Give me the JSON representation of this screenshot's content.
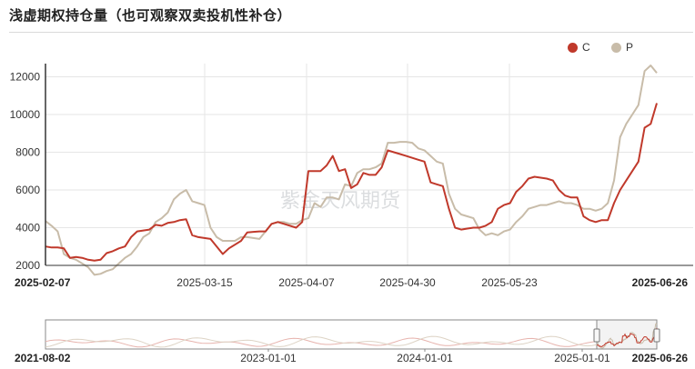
{
  "title": "浅虚期权持仓量（也可观察双卖投机性补仓）",
  "watermark": "紫金天风期货",
  "colors": {
    "C": "#c0392b",
    "P": "#c8bca9",
    "grid": "#e6e6e6",
    "axis": "#333333"
  },
  "chart_data": {
    "type": "line",
    "title": "浅虚期权持仓量（也可观察双卖投机性补仓）",
    "xlabel": "",
    "ylabel": "",
    "ylim": [
      2000,
      12600
    ],
    "yticks": [
      2000,
      4000,
      6000,
      8000,
      10000,
      12000
    ],
    "grid": true,
    "legend": "top-right",
    "x_start": "2025-02-07",
    "x_end": "2025-06-26",
    "x_ticks": [
      {
        "label": "2025-02-07",
        "bold": true
      },
      {
        "label": "2025-03-15",
        "bold": false
      },
      {
        "label": "2025-04-07",
        "bold": false
      },
      {
        "label": "2025-04-30",
        "bold": false
      },
      {
        "label": "2025-05-23",
        "bold": false
      },
      {
        "label": "2025-06-26",
        "bold": true
      }
    ],
    "series": [
      {
        "name": "C",
        "values": [
          3000,
          2950,
          2950,
          2900,
          2400,
          2450,
          2400,
          2300,
          2250,
          2300,
          2650,
          2750,
          2900,
          3000,
          3500,
          3800,
          3850,
          3900,
          4150,
          4100,
          4250,
          4300,
          4400,
          4450,
          3600,
          3500,
          3450,
          3400,
          3000,
          2600,
          2900,
          3100,
          3300,
          3750,
          3780,
          3800,
          3800,
          4200,
          4300,
          4200,
          4100,
          4000,
          4300,
          7000,
          7000,
          7000,
          7300,
          7800,
          7000,
          7100,
          6100,
          6300,
          6900,
          6800,
          6800,
          7200,
          8100,
          8000,
          7900,
          7800,
          7700,
          7600,
          7500,
          6400,
          6300,
          6200,
          5000,
          4000,
          3900,
          3950,
          4000,
          4000,
          4100,
          4300,
          5000,
          5200,
          5300,
          5900,
          6200,
          6600,
          6700,
          6650,
          6600,
          6500,
          6000,
          5700,
          5600,
          5600,
          4600,
          4400,
          4300,
          4400,
          4400,
          5300,
          6000,
          6500,
          7000,
          7500,
          9300,
          9500,
          10600
        ]
      },
      {
        "name": "P",
        "values": [
          4350,
          4100,
          3800,
          2600,
          2400,
          2300,
          2100,
          1900,
          1500,
          1550,
          1700,
          1800,
          2100,
          2400,
          2600,
          3000,
          3500,
          3700,
          4300,
          4500,
          4800,
          5500,
          5800,
          6000,
          5400,
          5300,
          5200,
          4000,
          3500,
          3300,
          3300,
          3300,
          3500,
          3500,
          3450,
          3400,
          3800,
          4200,
          4300,
          4300,
          4200,
          4200,
          4400,
          4500,
          5300,
          5100,
          5600,
          5600,
          5500,
          6300,
          6200,
          6900,
          7100,
          7100,
          7200,
          7400,
          8500,
          8500,
          8550,
          8550,
          8500,
          8200,
          8100,
          7800,
          7500,
          7400,
          5800,
          5000,
          4700,
          4600,
          4500,
          3900,
          3600,
          3700,
          3600,
          3800,
          3900,
          4300,
          4600,
          5000,
          5100,
          5200,
          5200,
          5300,
          5400,
          5300,
          5300,
          5200,
          5000,
          5000,
          4900,
          5000,
          5300,
          6500,
          8800,
          9500,
          10000,
          10500,
          12300,
          12600,
          12200
        ]
      }
    ]
  },
  "navigator": {
    "start_label": "2021-08-02",
    "end_label": "2025-06-26",
    "ticks": [
      "2023-01-01",
      "2024-01-01",
      "2025-01-01"
    ]
  }
}
